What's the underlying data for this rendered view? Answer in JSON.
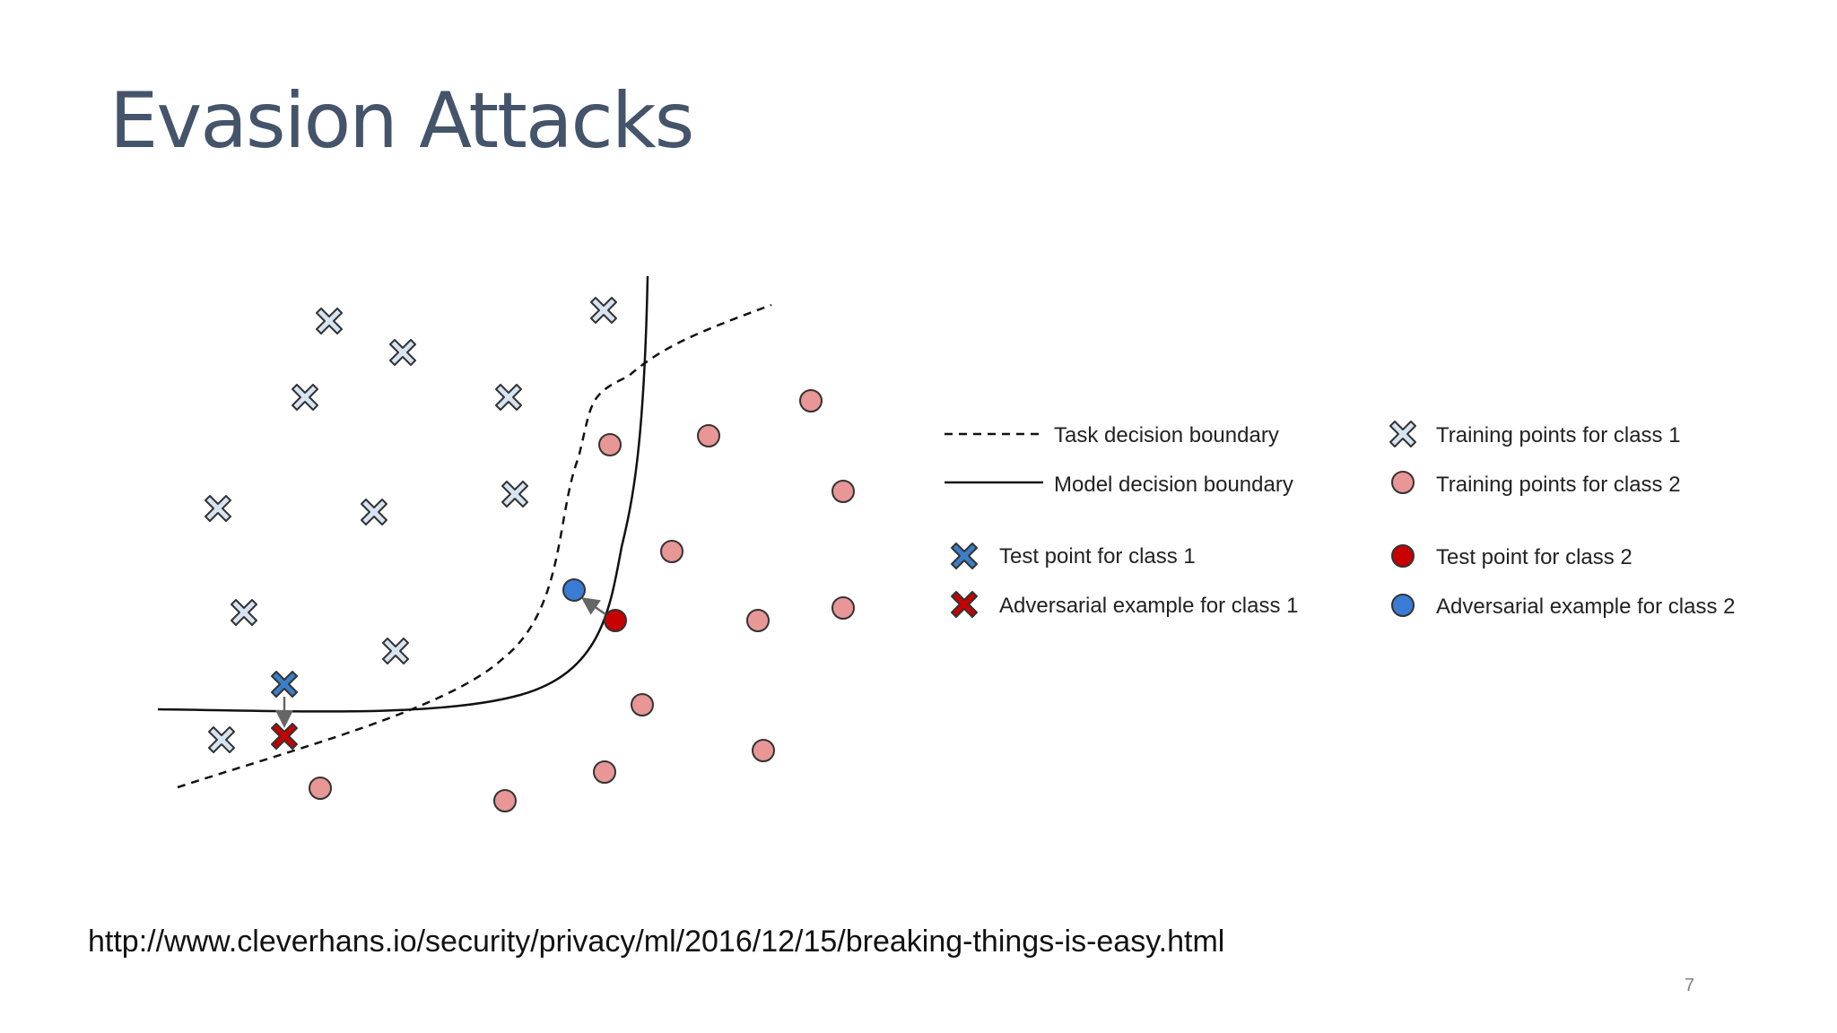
{
  "slide": {
    "title": "Evasion Attacks",
    "source_url": "http://www.cleverhans.io/security/privacy/ml/2016/12/15/breaking-things-is-easy.html",
    "page_number": "7"
  },
  "colors": {
    "title": "#44546a",
    "class1_training_fill": "#d6e4f2",
    "class2_training_fill": "#e89696",
    "class1_test_fill": "#3a7fc8",
    "class2_test_fill": "#c80000",
    "class1_adversarial_fill": "#c80000",
    "class2_adversarial_fill": "#3a7bd5",
    "outline": "#333333"
  },
  "diagram": {
    "legend": {
      "task_boundary": "Task decision boundary",
      "model_boundary": "Model decision boundary",
      "test_class1": "Test point for class 1",
      "adversarial_class1": "Adversarial example for class 1",
      "training_class1": "Training points for class 1",
      "training_class2": "Training points for class 2",
      "test_class2": "Test point for class 2",
      "adversarial_class2": "Adversarial example for class 2"
    },
    "icons": {
      "class1_marker": "x-cross-icon",
      "class2_marker": "circle-icon",
      "perturbation_arrow": "arrow-icon"
    }
  }
}
